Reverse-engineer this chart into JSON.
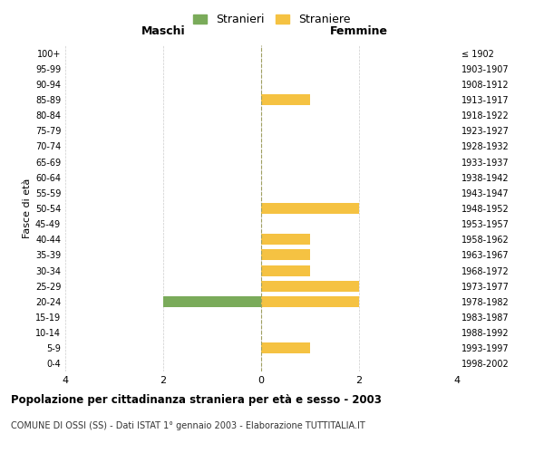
{
  "age_groups": [
    "100+",
    "95-99",
    "90-94",
    "85-89",
    "80-84",
    "75-79",
    "70-74",
    "65-69",
    "60-64",
    "55-59",
    "50-54",
    "45-49",
    "40-44",
    "35-39",
    "30-34",
    "25-29",
    "20-24",
    "15-19",
    "10-14",
    "5-9",
    "0-4"
  ],
  "birth_years": [
    "≤ 1902",
    "1903-1907",
    "1908-1912",
    "1913-1917",
    "1918-1922",
    "1923-1927",
    "1928-1932",
    "1933-1937",
    "1938-1942",
    "1943-1947",
    "1948-1952",
    "1953-1957",
    "1958-1962",
    "1963-1967",
    "1968-1972",
    "1973-1977",
    "1978-1982",
    "1983-1987",
    "1988-1992",
    "1993-1997",
    "1998-2002"
  ],
  "maschi_stranieri": [
    0,
    0,
    0,
    0,
    0,
    0,
    0,
    0,
    0,
    0,
    0,
    0,
    0,
    0,
    0,
    0,
    2,
    0,
    0,
    0,
    0
  ],
  "femmine_straniere": [
    0,
    0,
    0,
    1,
    0,
    0,
    0,
    0,
    0,
    0,
    2,
    0,
    1,
    1,
    1,
    2,
    2,
    0,
    0,
    1,
    0
  ],
  "color_maschi": "#7aab5a",
  "color_femmine": "#f5c242",
  "xlim": 4,
  "title": "Popolazione per cittadinanza straniera per età e sesso - 2003",
  "subtitle": "COMUNE DI OSSI (SS) - Dati ISTAT 1° gennaio 2003 - Elaborazione TUTTITALIA.IT",
  "legend_maschi": "Stranieri",
  "legend_femmine": "Straniere",
  "label_maschi": "Maschi",
  "label_femmine": "Femmine",
  "ylabel_left": "Fasce di età"
}
